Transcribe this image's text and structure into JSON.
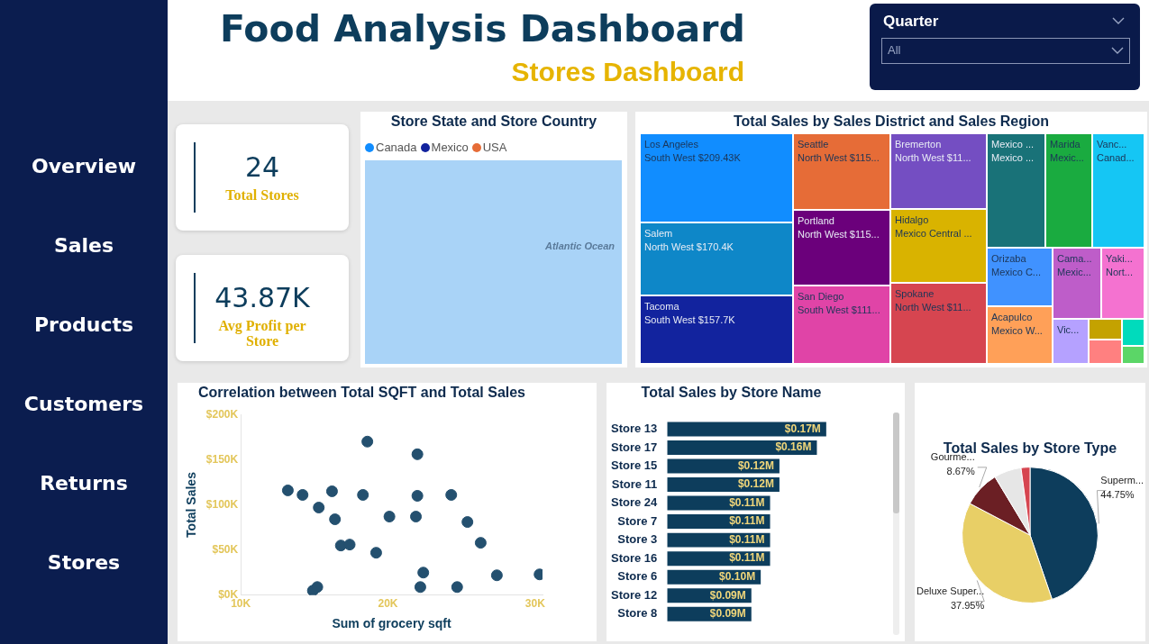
{
  "chart_data": [
    {
      "type": "other",
      "annotations": [
        "Overview",
        "Sales",
        "Products",
        "Customers",
        "Returns",
        "Stores"
      ]
    },
    {
      "type": "other",
      "title": "Food Analysis Dashboard",
      "subtitle": "Stores Dashboard"
    },
    {
      "type": "other",
      "title": "Quarter",
      "annotations": [
        "All"
      ]
    },
    {
      "type": "other",
      "annotations": [
        "24",
        "Total Stores"
      ]
    },
    {
      "type": "other",
      "annotations": [
        "43.87K",
        "Avg Profit per Store"
      ]
    },
    {
      "type": "other",
      "title": "Store State and Store Country",
      "legend": "top left",
      "series": [
        {
          "name": "Canada",
          "color": "#118dff"
        },
        {
          "name": "Mexico",
          "color": "#12239e"
        },
        {
          "name": "USA",
          "color": "#e66c37"
        }
      ],
      "annotations": [
        "Atlantic Ocean"
      ]
    },
    {
      "type": "other",
      "title": "Total Sales by Sales District and Sales Region",
      "categories": [
        "Los Angeles",
        "Salem",
        "Tacoma",
        "Seattle",
        "Portland",
        "San Diego",
        "Bremerton",
        "Hidalgo",
        "Spokane",
        "Mexico ...",
        "Marida",
        "Vanc...",
        "Orizaba",
        "Acapulco",
        "Cama...",
        "Yaki...",
        "Vic...",
        null,
        null,
        null,
        null
      ],
      "value_labels": [
        "South West $209.43K",
        "North West $170.4K",
        "South West $157.7K",
        "North West $115...",
        "North West $115...",
        "South West $111...",
        "North West $11...",
        "Mexico Central ...",
        "North West $11...",
        "Mexico ...",
        "Mexic...",
        "Canad...",
        "Mexico C...",
        "Mexico W...",
        "Mexic...",
        "Nort...",
        null,
        null,
        null,
        null,
        null
      ],
      "colors": [
        "#118dff",
        "#0e87c8",
        "#12239e",
        "#e66c37",
        "#6b007b",
        "#e044a7",
        "#744ec2",
        "#d9b300",
        "#d64550",
        "#197278",
        "#1aab40",
        "#15c6f4",
        "#4092ff",
        "#ffa058",
        "#be5dc9",
        "#f472d0",
        "#b5a1ff",
        "#c4a200",
        "#ff8080",
        "#00dbbc",
        "#5bd667"
      ]
    },
    {
      "type": "scatter",
      "title": "Correlation between Total SQFT and Total Sales",
      "xlabel": "Sum of grocery sqft",
      "ylabel": "Total Sales",
      "color": "#24506f",
      "marker": "circle",
      "x": [
        18600,
        22000,
        13200,
        14200,
        16200,
        18300,
        22000,
        24300,
        15300,
        16400,
        20100,
        21900,
        25400,
        16800,
        17400,
        26300,
        19200,
        22400,
        27400,
        30300,
        22200,
        24700,
        14900,
        15200
      ],
      "values": [
        170000,
        156000,
        116000,
        111000,
        115000,
        111000,
        110000,
        111000,
        97000,
        84000,
        87000,
        87000,
        81000,
        55000,
        56000,
        58000,
        47000,
        25000,
        22000,
        23000,
        9000,
        9000,
        5000,
        9000
      ],
      "xlim": [
        10000,
        30500
      ],
      "xticks": [
        {
          "value": 10000,
          "label": "10K"
        },
        {
          "value": 20000,
          "label": "20K"
        },
        {
          "value": 30000,
          "label": "30K"
        }
      ],
      "ylim": [
        0,
        200000
      ],
      "yticks": [
        {
          "value": 0,
          "label": "$0K"
        },
        {
          "value": 50000,
          "label": "$50K"
        },
        {
          "value": 100000,
          "label": "$100K"
        },
        {
          "value": 150000,
          "label": "$150K"
        },
        {
          "value": 200000,
          "label": "$200K"
        }
      ]
    },
    {
      "type": "bar",
      "orientation": "horizontal",
      "title": "Total Sales by Store Name",
      "color": "#0d3d5c",
      "categories": [
        "Store 13",
        "Store 17",
        "Store 15",
        "Store 11",
        "Store 24",
        "Store 7",
        "Store 3",
        "Store 16",
        "Store 6",
        "Store 12",
        "Store 8"
      ],
      "values": [
        0.17,
        0.16,
        0.12,
        0.12,
        0.11,
        0.11,
        0.11,
        0.11,
        0.1,
        0.09,
        0.09
      ],
      "value_labels": [
        "$0.17M",
        "$0.16M",
        "$0.12M",
        "$0.12M",
        "$0.11M",
        "$0.11M",
        "$0.11M",
        "$0.11M",
        "$0.10M",
        "$0.09M",
        "$0.09M"
      ]
    },
    {
      "type": "pie",
      "title": "Total Sales by Store Type",
      "categories": [
        "Superm...",
        "Deluxe Super...",
        "Gourme...",
        null,
        null
      ],
      "values": [
        44.75,
        37.95,
        8.67,
        6.5,
        2.13
      ],
      "value_labels": [
        "44.75%",
        "37.95%",
        "8.67%",
        null,
        null
      ],
      "colors": [
        "#0d3d5c",
        "#e8cf66",
        "#6b1f24",
        "#e6e6e6",
        "#d64550"
      ]
    }
  ]
}
